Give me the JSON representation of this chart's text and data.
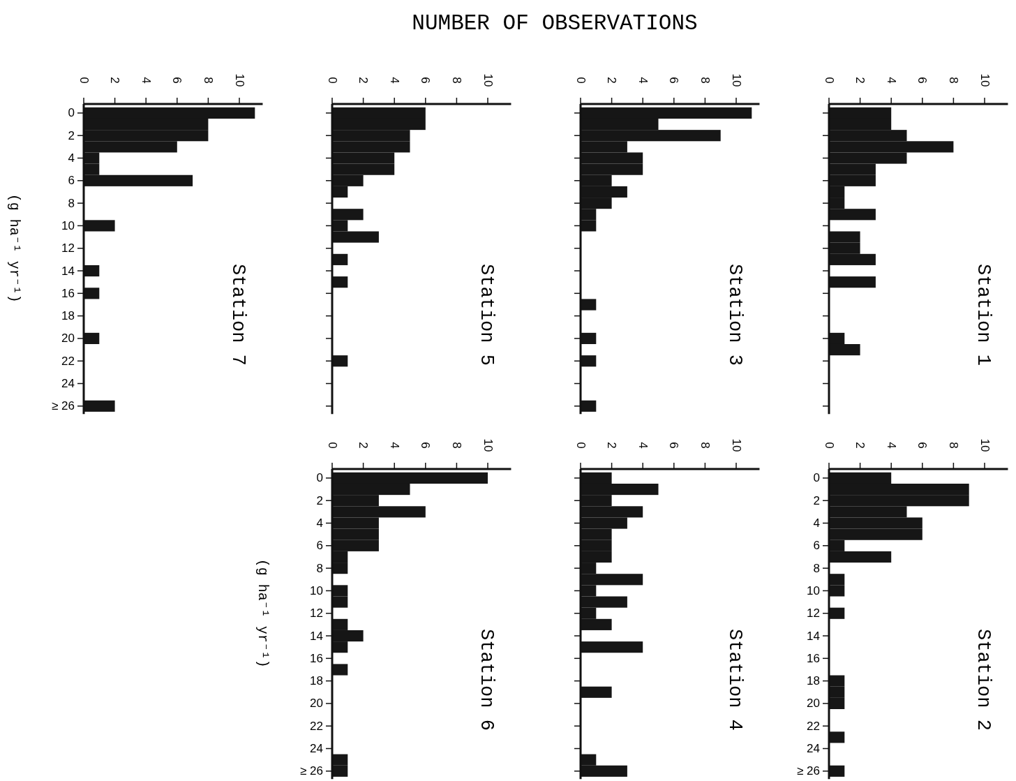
{
  "chart_data": [
    {
      "type": "histogram",
      "orientation": "horizontal",
      "title": "Station 1",
      "xlabel": "NUMBER OF OBSERVATIONS",
      "color": "#161616",
      "tick_labels": "x",
      "bins": [
        -0.5,
        0.5,
        1.5,
        2.5,
        3.5,
        4.5,
        5.5,
        6.5,
        7.5,
        8.5,
        9.5,
        10.5,
        11.5,
        12.5,
        13.5,
        14.5,
        15.5,
        16.5,
        17.5,
        18.5,
        19.5,
        20.5,
        21.5,
        22.5,
        23.5,
        24.5,
        25.5,
        26.5
      ],
      "values": [
        4,
        4,
        5,
        8,
        5,
        3,
        3,
        1,
        1,
        3,
        0,
        2,
        2,
        3,
        0,
        3,
        0,
        0,
        0,
        0,
        1,
        2,
        0,
        0,
        0,
        0,
        0
      ],
      "xlim": [
        0,
        11.5
      ],
      "xticks": [
        0,
        2,
        4,
        6,
        8,
        10
      ],
      "ylim": [
        26.7,
        -0.8
      ],
      "yticks": [
        {
          "value": 0,
          "label": null
        },
        {
          "value": 2,
          "label": null
        },
        {
          "value": 4,
          "label": null
        },
        {
          "value": 6,
          "label": null
        },
        {
          "value": 8,
          "label": null
        },
        {
          "value": 10,
          "label": null
        },
        {
          "value": 12,
          "label": null
        },
        {
          "value": 14,
          "label": null
        },
        {
          "value": 16,
          "label": null
        },
        {
          "value": 18,
          "label": null
        },
        {
          "value": 20,
          "label": null
        },
        {
          "value": 22,
          "label": null
        },
        {
          "value": 24,
          "label": null
        },
        {
          "value": 26,
          "label": null
        }
      ]
    },
    {
      "type": "histogram",
      "orientation": "horizontal",
      "title": "Station 2",
      "color": "#161616",
      "bins": [
        -0.5,
        0.5,
        1.5,
        2.5,
        3.5,
        4.5,
        5.5,
        6.5,
        7.5,
        8.5,
        9.5,
        10.5,
        11.5,
        12.5,
        13.5,
        14.5,
        15.5,
        16.5,
        17.5,
        18.5,
        19.5,
        20.5,
        21.5,
        22.5,
        23.5,
        24.5,
        25.5,
        26.5
      ],
      "values": [
        4,
        9,
        9,
        5,
        6,
        6,
        1,
        4,
        0,
        1,
        1,
        0,
        1,
        0,
        0,
        0,
        0,
        0,
        1,
        1,
        1,
        0,
        0,
        1,
        0,
        0,
        1
      ],
      "xlim": [
        0,
        11.5
      ],
      "xticks": [
        0,
        2,
        4,
        6,
        8,
        10
      ],
      "ylim": [
        26.7,
        -0.8
      ],
      "yticks": [
        0,
        2,
        4,
        6,
        8,
        10,
        12,
        14,
        16,
        18,
        20,
        22,
        24,
        {
          "value": 26,
          "label": "≥ 26"
        }
      ]
    },
    {
      "type": "histogram",
      "orientation": "horizontal",
      "title": "Station 3",
      "color": "#161616",
      "tick_labels": "x",
      "bins": [
        -0.5,
        0.5,
        1.5,
        2.5,
        3.5,
        4.5,
        5.5,
        6.5,
        7.5,
        8.5,
        9.5,
        10.5,
        11.5,
        12.5,
        13.5,
        14.5,
        15.5,
        16.5,
        17.5,
        18.5,
        19.5,
        20.5,
        21.5,
        22.5,
        23.5,
        24.5,
        25.5,
        26.5
      ],
      "values": [
        11,
        5,
        9,
        3,
        4,
        4,
        2,
        3,
        2,
        1,
        1,
        0,
        0,
        0,
        0,
        0,
        0,
        1,
        0,
        0,
        1,
        0,
        1,
        0,
        0,
        0,
        1
      ],
      "xlim": [
        0,
        11.5
      ],
      "xticks": [
        0,
        2,
        4,
        6,
        8,
        10
      ],
      "ylim": [
        26.7,
        -0.8
      ],
      "yticks": [
        {
          "value": 0,
          "label": null
        },
        {
          "value": 2,
          "label": null
        },
        {
          "value": 4,
          "label": null
        },
        {
          "value": 6,
          "label": null
        },
        {
          "value": 8,
          "label": null
        },
        {
          "value": 10,
          "label": null
        },
        {
          "value": 12,
          "label": null
        },
        {
          "value": 14,
          "label": null
        },
        {
          "value": 16,
          "label": null
        },
        {
          "value": 18,
          "label": null
        },
        {
          "value": 20,
          "label": null
        },
        {
          "value": 22,
          "label": null
        },
        {
          "value": 24,
          "label": null
        },
        {
          "value": 26,
          "label": null
        }
      ]
    },
    {
      "type": "histogram",
      "orientation": "horizontal",
      "title": "Station 4",
      "color": "#161616",
      "tick_labels": "x",
      "bins": [
        -0.5,
        0.5,
        1.5,
        2.5,
        3.5,
        4.5,
        5.5,
        6.5,
        7.5,
        8.5,
        9.5,
        10.5,
        11.5,
        12.5,
        13.5,
        14.5,
        15.5,
        16.5,
        17.5,
        18.5,
        19.5,
        20.5,
        21.5,
        22.5,
        23.5,
        24.5,
        25.5,
        26.5
      ],
      "values": [
        2,
        5,
        2,
        4,
        3,
        2,
        2,
        2,
        1,
        4,
        1,
        3,
        1,
        2,
        0,
        4,
        0,
        0,
        0,
        2,
        0,
        0,
        0,
        0,
        0,
        1,
        3
      ],
      "xlim": [
        0,
        11.5
      ],
      "xticks": [
        0,
        2,
        4,
        6,
        8,
        10
      ],
      "ylim": [
        26.7,
        -0.8
      ],
      "yticks": [
        {
          "value": 0,
          "label": null
        },
        {
          "value": 2,
          "label": null
        },
        {
          "value": 4,
          "label": null
        },
        {
          "value": 6,
          "label": null
        },
        {
          "value": 8,
          "label": null
        },
        {
          "value": 10,
          "label": null
        },
        {
          "value": 12,
          "label": null
        },
        {
          "value": 14,
          "label": null
        },
        {
          "value": 16,
          "label": null
        },
        {
          "value": 18,
          "label": null
        },
        {
          "value": 20,
          "label": null
        },
        {
          "value": 22,
          "label": null
        },
        {
          "value": 24,
          "label": null
        },
        {
          "value": 26,
          "label": null
        }
      ]
    },
    {
      "type": "histogram",
      "orientation": "horizontal",
      "title": "Station 5",
      "color": "#161616",
      "tick_labels": "x",
      "bins": [
        -0.5,
        0.5,
        1.5,
        2.5,
        3.5,
        4.5,
        5.5,
        6.5,
        7.5,
        8.5,
        9.5,
        10.5,
        11.5,
        12.5,
        13.5,
        14.5,
        15.5,
        16.5,
        17.5,
        18.5,
        19.5,
        20.5,
        21.5,
        22.5,
        23.5,
        24.5,
        25.5,
        26.5
      ],
      "values": [
        6,
        6,
        5,
        5,
        4,
        4,
        2,
        1,
        0,
        2,
        1,
        3,
        0,
        1,
        0,
        1,
        0,
        0,
        0,
        0,
        0,
        0,
        1,
        0,
        0,
        0,
        0
      ],
      "xlim": [
        0,
        11.5
      ],
      "xticks": [
        0,
        2,
        4,
        6,
        8,
        10
      ],
      "ylim": [
        26.7,
        -0.8
      ],
      "yticks": [
        {
          "value": 0,
          "label": null
        },
        {
          "value": 2,
          "label": null
        },
        {
          "value": 4,
          "label": null
        },
        {
          "value": 6,
          "label": null
        },
        {
          "value": 8,
          "label": null
        },
        {
          "value": 10,
          "label": null
        },
        {
          "value": 12,
          "label": null
        },
        {
          "value": 14,
          "label": null
        },
        {
          "value": 16,
          "label": null
        },
        {
          "value": 18,
          "label": null
        },
        {
          "value": 20,
          "label": null
        },
        {
          "value": 22,
          "label": null
        },
        {
          "value": 24,
          "label": null
        },
        {
          "value": 26,
          "label": null
        }
      ]
    },
    {
      "type": "histogram",
      "orientation": "horizontal",
      "title": "Station 6",
      "ylabel": "(g ha⁻¹ yr⁻¹)",
      "color": "#161616",
      "bins": [
        -0.5,
        0.5,
        1.5,
        2.5,
        3.5,
        4.5,
        5.5,
        6.5,
        7.5,
        8.5,
        9.5,
        10.5,
        11.5,
        12.5,
        13.5,
        14.5,
        15.5,
        16.5,
        17.5,
        18.5,
        19.5,
        20.5,
        21.5,
        22.5,
        23.5,
        24.5,
        25.5,
        26.5
      ],
      "values": [
        10,
        5,
        3,
        6,
        3,
        3,
        3,
        1,
        1,
        0,
        1,
        1,
        0,
        1,
        2,
        1,
        0,
        1,
        0,
        0,
        0,
        0,
        0,
        0,
        0,
        1,
        1
      ],
      "xlim": [
        0,
        11.5
      ],
      "xticks": [
        0,
        2,
        4,
        6,
        8,
        10
      ],
      "ylim": [
        26.7,
        -0.8
      ],
      "yticks": [
        0,
        2,
        4,
        6,
        8,
        10,
        12,
        14,
        16,
        18,
        20,
        22,
        24,
        {
          "value": 26,
          "label": "≥ 26"
        }
      ]
    },
    {
      "type": "histogram",
      "orientation": "horizontal",
      "title": "Station 7",
      "ylabel": "(g ha⁻¹ yr⁻¹)",
      "color": "#161616",
      "bins": [
        -0.5,
        0.5,
        1.5,
        2.5,
        3.5,
        4.5,
        5.5,
        6.5,
        7.5,
        8.5,
        9.5,
        10.5,
        11.5,
        12.5,
        13.5,
        14.5,
        15.5,
        16.5,
        17.5,
        18.5,
        19.5,
        20.5,
        21.5,
        22.5,
        23.5,
        24.5,
        25.5,
        26.5
      ],
      "values": [
        11,
        8,
        8,
        6,
        1,
        1,
        7,
        0,
        0,
        0,
        2,
        0,
        0,
        0,
        1,
        0,
        1,
        0,
        0,
        0,
        1,
        0,
        0,
        0,
        0,
        0,
        2
      ],
      "xlim": [
        0,
        11.5
      ],
      "xticks": [
        0,
        2,
        4,
        6,
        8,
        10
      ],
      "ylim": [
        26.7,
        -0.8
      ],
      "yticks": [
        0,
        2,
        4,
        6,
        8,
        10,
        12,
        14,
        16,
        18,
        20,
        22,
        24,
        {
          "value": 26,
          "label": "≥ 26"
        }
      ]
    }
  ]
}
